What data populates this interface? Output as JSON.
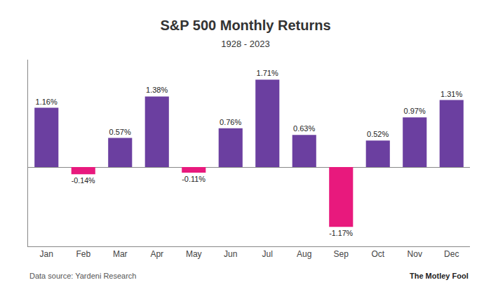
{
  "chart_data": {
    "type": "bar",
    "title": "S&P 500 Monthly Returns",
    "subtitle": "1928 - 2023",
    "categories": [
      "Jan",
      "Feb",
      "Mar",
      "Apr",
      "May",
      "Jun",
      "Jul",
      "Aug",
      "Sep",
      "Oct",
      "Nov",
      "Dec"
    ],
    "values": [
      1.16,
      -0.14,
      0.57,
      1.38,
      -0.11,
      0.76,
      1.71,
      0.63,
      -1.17,
      0.52,
      0.97,
      1.31
    ],
    "value_labels": [
      "1.16%",
      "-0.14%",
      "0.57%",
      "1.38%",
      "-0.11%",
      "0.76%",
      "1.71%",
      "0.63%",
      "-1.17%",
      "0.52%",
      "0.97%",
      "1.31%"
    ],
    "colors": [
      "#6B3FA0",
      "#E8197D",
      "#6B3FA0",
      "#6B3FA0",
      "#E8197D",
      "#6B3FA0",
      "#6B3FA0",
      "#6B3FA0",
      "#E8197D",
      "#6B3FA0",
      "#6B3FA0",
      "#6B3FA0"
    ],
    "data_labels": true,
    "ylim": [
      -1.55,
      2.1
    ],
    "yticks": [],
    "tick_labels": "x",
    "grid": false,
    "annotations": [
      "Data source: Yardeni Research",
      "The Motley Fool"
    ]
  }
}
